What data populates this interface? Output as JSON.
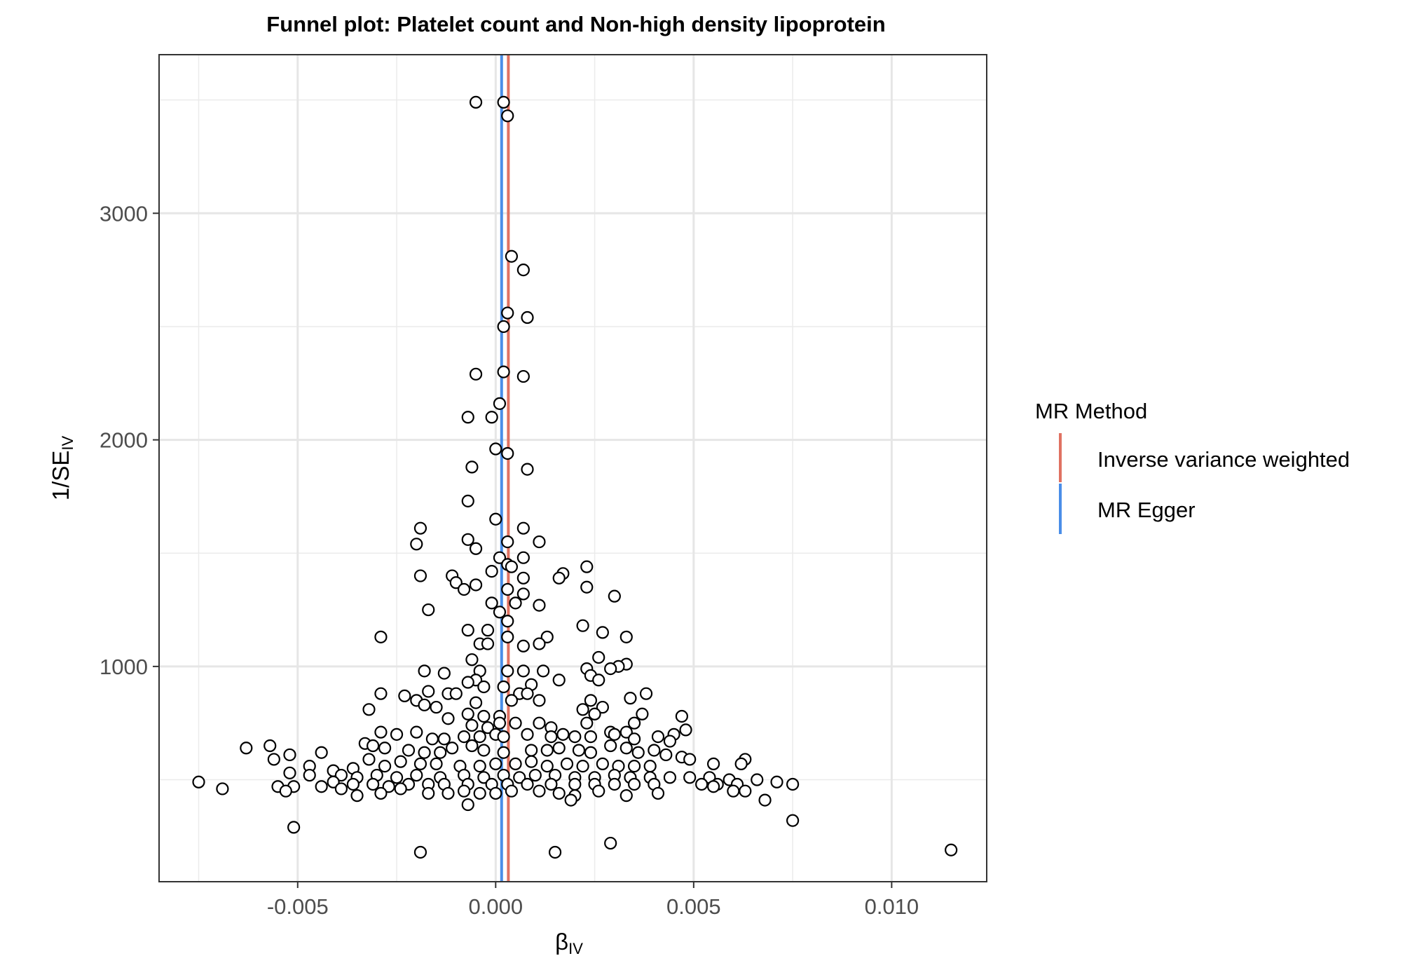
{
  "chart_data": {
    "type": "scatter",
    "title": "Funnel plot: Platelet count and Non-high density lipoprotein",
    "xlabel": "β",
    "xlabel_sub": "IV",
    "ylabel": "1/SE",
    "ylabel_sub": "IV",
    "xlim": [
      -0.0085,
      0.0124
    ],
    "ylim": [
      50,
      3700
    ],
    "x_ticks": [
      -0.005,
      0.0,
      0.005,
      0.01
    ],
    "x_tick_labels": [
      "-0.005",
      "0.000",
      "0.005",
      "0.010"
    ],
    "x_minor_ticks": [
      -0.0075,
      -0.0025,
      0.0025,
      0.0075
    ],
    "y_ticks": [
      1000,
      2000,
      3000
    ],
    "y_tick_labels": [
      "1000",
      "2000",
      "3000"
    ],
    "y_minor_ticks": [
      500,
      1500,
      2500,
      3500
    ],
    "grid": true,
    "legend": {
      "title": "MR Method",
      "position": "right",
      "entries": [
        {
          "label": "Inverse variance weighted",
          "color": "#e07262"
        },
        {
          "label": "MR Egger",
          "color": "#4a8ee8"
        }
      ]
    },
    "lines": [
      {
        "method": "Inverse variance weighted",
        "x": 0.00032,
        "color": "#e07262"
      },
      {
        "method": "MR Egger",
        "x": 0.00015,
        "color": "#4a8ee8"
      }
    ],
    "points": [
      [
        -0.0005,
        3490
      ],
      [
        0.0002,
        3490
      ],
      [
        0.0003,
        3430
      ],
      [
        0.0004,
        2810
      ],
      [
        0.0007,
        2750
      ],
      [
        0.0003,
        2560
      ],
      [
        0.0008,
        2540
      ],
      [
        0.0002,
        2500
      ],
      [
        -0.0005,
        2290
      ],
      [
        0.0002,
        2300
      ],
      [
        0.0007,
        2280
      ],
      [
        0.0001,
        2160
      ],
      [
        -0.0007,
        2100
      ],
      [
        -0.0001,
        2100
      ],
      [
        0.0,
        1960
      ],
      [
        0.0003,
        1940
      ],
      [
        -0.0006,
        1880
      ],
      [
        0.0008,
        1870
      ],
      [
        -0.0007,
        1730
      ],
      [
        -0.0019,
        1610
      ],
      [
        0.0,
        1650
      ],
      [
        0.0007,
        1610
      ],
      [
        -0.0007,
        1560
      ],
      [
        -0.002,
        1540
      ],
      [
        0.0003,
        1550
      ],
      [
        0.0011,
        1550
      ],
      [
        -0.0005,
        1520
      ],
      [
        0.0001,
        1480
      ],
      [
        0.0007,
        1480
      ],
      [
        0.0023,
        1440
      ],
      [
        0.0003,
        1450
      ],
      [
        -0.0019,
        1400
      ],
      [
        -0.0011,
        1400
      ],
      [
        0.0017,
        1410
      ],
      [
        0.0016,
        1390
      ],
      [
        -0.0001,
        1420
      ],
      [
        0.0004,
        1440
      ],
      [
        0.0007,
        1390
      ],
      [
        -0.001,
        1370
      ],
      [
        -0.0005,
        1360
      ],
      [
        -0.0008,
        1340
      ],
      [
        0.0023,
        1350
      ],
      [
        0.0003,
        1340
      ],
      [
        0.0007,
        1320
      ],
      [
        0.003,
        1310
      ],
      [
        -0.0001,
        1280
      ],
      [
        0.0005,
        1280
      ],
      [
        0.0011,
        1270
      ],
      [
        -0.0017,
        1250
      ],
      [
        0.0001,
        1240
      ],
      [
        0.0003,
        1200
      ],
      [
        0.0022,
        1180
      ],
      [
        -0.0007,
        1160
      ],
      [
        -0.0002,
        1160
      ],
      [
        0.0027,
        1150
      ],
      [
        -0.0029,
        1130
      ],
      [
        0.0013,
        1130
      ],
      [
        0.0033,
        1130
      ],
      [
        0.0003,
        1130
      ],
      [
        -0.0004,
        1100
      ],
      [
        -0.0002,
        1100
      ],
      [
        0.0007,
        1090
      ],
      [
        0.0011,
        1100
      ],
      [
        0.0026,
        1040
      ],
      [
        -0.0006,
        1030
      ],
      [
        0.0033,
        1010
      ],
      [
        0.0031,
        1000
      ],
      [
        0.0023,
        990
      ],
      [
        0.0029,
        990
      ],
      [
        -0.0018,
        980
      ],
      [
        -0.0013,
        970
      ],
      [
        -0.0004,
        980
      ],
      [
        0.0003,
        980
      ],
      [
        0.0007,
        980
      ],
      [
        0.0012,
        980
      ],
      [
        0.0024,
        960
      ],
      [
        -0.0005,
        940
      ],
      [
        0.0016,
        940
      ],
      [
        0.0026,
        940
      ],
      [
        -0.0007,
        930
      ],
      [
        -0.0003,
        910
      ],
      [
        0.0002,
        910
      ],
      [
        0.0009,
        920
      ],
      [
        -0.0017,
        890
      ],
      [
        -0.0012,
        880
      ],
      [
        -0.001,
        880
      ],
      [
        -0.0029,
        880
      ],
      [
        0.0038,
        880
      ],
      [
        -0.0023,
        870
      ],
      [
        0.0006,
        880
      ],
      [
        0.0008,
        880
      ],
      [
        0.0024,
        850
      ],
      [
        0.0034,
        860
      ],
      [
        -0.002,
        850
      ],
      [
        0.0004,
        850
      ],
      [
        0.0011,
        850
      ],
      [
        -0.0018,
        830
      ],
      [
        -0.0015,
        820
      ],
      [
        -0.0005,
        840
      ],
      [
        0.0022,
        810
      ],
      [
        0.0027,
        820
      ],
      [
        -0.0032,
        810
      ],
      [
        0.0047,
        780
      ],
      [
        -0.0007,
        790
      ],
      [
        -0.0003,
        780
      ],
      [
        0.0001,
        780
      ],
      [
        0.0025,
        790
      ],
      [
        0.0037,
        790
      ],
      [
        -0.0012,
        770
      ],
      [
        0.0005,
        750
      ],
      [
        0.0023,
        750
      ],
      [
        0.0035,
        750
      ],
      [
        -0.0006,
        740
      ],
      [
        -0.0002,
        730
      ],
      [
        0.0001,
        750
      ],
      [
        0.0011,
        750
      ],
      [
        0.0014,
        730
      ],
      [
        0.0017,
        700
      ],
      [
        0.0029,
        710
      ],
      [
        0.0033,
        710
      ],
      [
        0.0045,
        700
      ],
      [
        0.0048,
        720
      ],
      [
        -0.0029,
        710
      ],
      [
        -0.0025,
        700
      ],
      [
        -0.002,
        710
      ],
      [
        -0.0016,
        680
      ],
      [
        -0.0013,
        680
      ],
      [
        -0.0008,
        690
      ],
      [
        -0.0004,
        690
      ],
      [
        0.0,
        700
      ],
      [
        0.0002,
        690
      ],
      [
        0.0008,
        700
      ],
      [
        0.0014,
        690
      ],
      [
        0.002,
        690
      ],
      [
        0.0024,
        690
      ],
      [
        0.003,
        700
      ],
      [
        0.0035,
        680
      ],
      [
        0.0041,
        690
      ],
      [
        0.0044,
        670
      ],
      [
        -0.0063,
        640
      ],
      [
        -0.0057,
        650
      ],
      [
        -0.0052,
        610
      ],
      [
        -0.0044,
        620
      ],
      [
        -0.0033,
        660
      ],
      [
        -0.0031,
        650
      ],
      [
        -0.0028,
        640
      ],
      [
        -0.0022,
        630
      ],
      [
        -0.0018,
        620
      ],
      [
        -0.0014,
        620
      ],
      [
        -0.0011,
        640
      ],
      [
        -0.0006,
        650
      ],
      [
        -0.0003,
        630
      ],
      [
        0.0002,
        620
      ],
      [
        0.0009,
        630
      ],
      [
        0.0013,
        630
      ],
      [
        0.0016,
        640
      ],
      [
        0.0021,
        630
      ],
      [
        0.0024,
        620
      ],
      [
        0.0029,
        650
      ],
      [
        0.0033,
        640
      ],
      [
        0.0036,
        620
      ],
      [
        0.004,
        630
      ],
      [
        0.0043,
        610
      ],
      [
        0.0047,
        600
      ],
      [
        0.0063,
        590
      ],
      [
        -0.0056,
        590
      ],
      [
        -0.0047,
        560
      ],
      [
        -0.0041,
        540
      ],
      [
        -0.0036,
        550
      ],
      [
        -0.0032,
        590
      ],
      [
        -0.0028,
        560
      ],
      [
        -0.0024,
        580
      ],
      [
        -0.0019,
        570
      ],
      [
        -0.0015,
        570
      ],
      [
        -0.0009,
        560
      ],
      [
        -0.0004,
        560
      ],
      [
        0.0,
        570
      ],
      [
        0.0005,
        570
      ],
      [
        0.0009,
        580
      ],
      [
        0.0013,
        560
      ],
      [
        0.0018,
        570
      ],
      [
        0.0022,
        560
      ],
      [
        0.0027,
        570
      ],
      [
        0.0031,
        560
      ],
      [
        0.0035,
        560
      ],
      [
        0.0039,
        560
      ],
      [
        0.0049,
        590
      ],
      [
        0.0055,
        570
      ],
      [
        0.0062,
        570
      ],
      [
        -0.0052,
        530
      ],
      [
        -0.0047,
        520
      ],
      [
        -0.0039,
        520
      ],
      [
        -0.0035,
        510
      ],
      [
        -0.003,
        520
      ],
      [
        -0.0025,
        510
      ],
      [
        -0.002,
        520
      ],
      [
        -0.0014,
        510
      ],
      [
        -0.0008,
        520
      ],
      [
        -0.0003,
        510
      ],
      [
        0.0002,
        520
      ],
      [
        0.0006,
        510
      ],
      [
        0.001,
        520
      ],
      [
        0.0015,
        520
      ],
      [
        0.002,
        510
      ],
      [
        0.0025,
        510
      ],
      [
        0.003,
        520
      ],
      [
        0.0034,
        510
      ],
      [
        0.0039,
        510
      ],
      [
        0.0044,
        510
      ],
      [
        0.0049,
        510
      ],
      [
        0.0054,
        510
      ],
      [
        0.0059,
        500
      ],
      [
        0.0066,
        500
      ],
      [
        -0.0075,
        490
      ],
      [
        -0.0069,
        460
      ],
      [
        -0.0055,
        470
      ],
      [
        -0.0051,
        470
      ],
      [
        -0.0044,
        470
      ],
      [
        -0.0041,
        490
      ],
      [
        -0.0036,
        480
      ],
      [
        -0.0031,
        480
      ],
      [
        -0.0027,
        470
      ],
      [
        -0.0022,
        480
      ],
      [
        -0.0017,
        480
      ],
      [
        -0.0013,
        480
      ],
      [
        -0.0007,
        480
      ],
      [
        -0.0001,
        480
      ],
      [
        0.0003,
        480
      ],
      [
        0.0008,
        480
      ],
      [
        0.0014,
        480
      ],
      [
        0.002,
        480
      ],
      [
        0.0025,
        480
      ],
      [
        0.003,
        480
      ],
      [
        0.0035,
        480
      ],
      [
        0.004,
        480
      ],
      [
        0.0052,
        480
      ],
      [
        0.0056,
        480
      ],
      [
        0.0061,
        480
      ],
      [
        0.0071,
        490
      ],
      [
        0.0075,
        480
      ],
      [
        -0.0053,
        450
      ],
      [
        -0.0039,
        460
      ],
      [
        -0.0035,
        430
      ],
      [
        -0.0029,
        440
      ],
      [
        -0.0024,
        460
      ],
      [
        -0.0017,
        440
      ],
      [
        -0.0012,
        440
      ],
      [
        -0.0008,
        450
      ],
      [
        -0.0004,
        440
      ],
      [
        0.0,
        440
      ],
      [
        0.0004,
        450
      ],
      [
        0.0011,
        450
      ],
      [
        0.0016,
        440
      ],
      [
        0.002,
        430
      ],
      [
        0.0026,
        450
      ],
      [
        0.0033,
        430
      ],
      [
        0.0041,
        440
      ],
      [
        0.0055,
        470
      ],
      [
        0.006,
        450
      ],
      [
        0.0063,
        450
      ],
      [
        0.0068,
        410
      ],
      [
        -0.0007,
        390
      ],
      [
        0.0019,
        410
      ],
      [
        0.0075,
        320
      ],
      [
        -0.0051,
        290
      ],
      [
        0.0029,
        220
      ],
      [
        -0.0019,
        180
      ],
      [
        0.0015,
        180
      ],
      [
        0.0115,
        190
      ]
    ]
  }
}
